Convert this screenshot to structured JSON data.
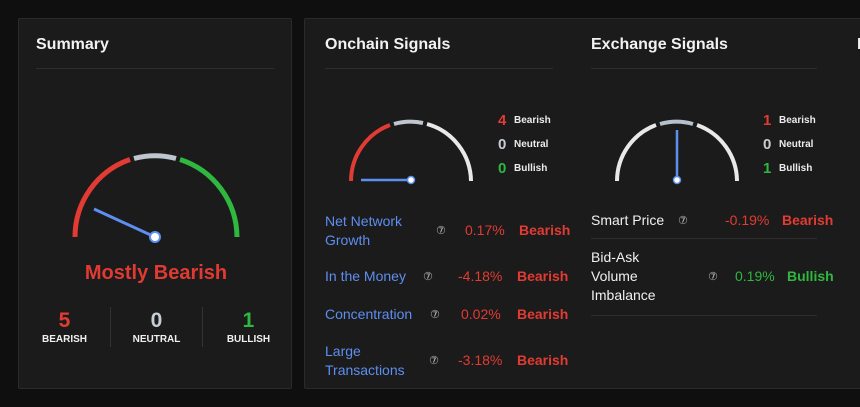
{
  "summary": {
    "title": "Summary",
    "verdict": "Mostly Bearish",
    "counts": [
      {
        "value": "5",
        "label": "BEARISH",
        "color": "#e23b33"
      },
      {
        "value": "0",
        "label": "NEUTRAL",
        "color": "#c7cdd6"
      },
      {
        "value": "1",
        "label": "BULLISH",
        "color": "#2fb73f"
      }
    ]
  },
  "onchain": {
    "title": "Onchain Signals",
    "legend": [
      {
        "value": "4",
        "label": "Bearish"
      },
      {
        "value": "0",
        "label": "Neutral"
      },
      {
        "value": "0",
        "label": "Bullish"
      }
    ],
    "rows": [
      {
        "name": "Net Network Growth",
        "pct": "0.17%",
        "signal": "Bearish"
      },
      {
        "name": "In the Money",
        "pct": "-4.18%",
        "signal": "Bearish"
      },
      {
        "name": "Concentration",
        "pct": "0.02%",
        "signal": "Bearish"
      },
      {
        "name": "Large Transactions",
        "pct": "-3.18%",
        "signal": "Bearish"
      }
    ]
  },
  "exchange": {
    "title": "Exchange Signals",
    "legend": [
      {
        "value": "1",
        "label": "Bearish"
      },
      {
        "value": "0",
        "label": "Neutral"
      },
      {
        "value": "1",
        "label": "Bullish"
      }
    ],
    "rows": [
      {
        "name": "Smart Price",
        "pct": "-0.19%",
        "signal": "Bearish"
      },
      {
        "name": "Bid-Ask Volume Imbalance",
        "pct": "0.19%",
        "signal": "Bullish"
      }
    ]
  },
  "next_section_title_partial": "D",
  "colors": {
    "bearish": "#e23b33",
    "neutral": "#c7cdd6",
    "bullish": "#2fb73f",
    "needle": "#5e8ef0"
  }
}
